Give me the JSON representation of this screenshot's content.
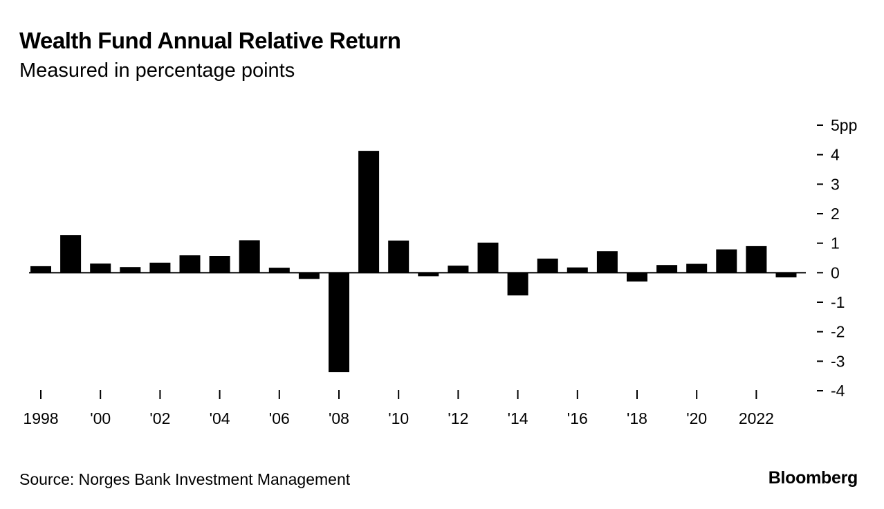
{
  "header": {
    "title": "Wealth Fund Annual Relative Return",
    "subtitle": "Measured in percentage points"
  },
  "footer": {
    "source": "Source: Norges Bank Investment Management",
    "brand": "Bloomberg"
  },
  "colors": {
    "bar": "#000000",
    "axis": "#000000",
    "background": "#ffffff"
  },
  "chart_data": {
    "type": "bar",
    "title": "Wealth Fund Annual Relative Return",
    "subtitle": "Measured in percentage points",
    "xlabel": "",
    "ylabel": "",
    "ylim": [
      -4,
      5
    ],
    "y_ticks": [
      5,
      4,
      3,
      2,
      1,
      0,
      -1,
      -2,
      -3,
      -4
    ],
    "y_tick_labels": [
      "5pp",
      "4",
      "3",
      "2",
      "1",
      "0",
      "-1",
      "-2",
      "-3",
      "-4"
    ],
    "y_axis_side": "right",
    "grid": false,
    "legend": "none",
    "categories": [
      1998,
      1999,
      2000,
      2001,
      2002,
      2003,
      2004,
      2005,
      2006,
      2007,
      2008,
      2009,
      2010,
      2011,
      2012,
      2013,
      2014,
      2015,
      2016,
      2017,
      2018,
      2019,
      2020,
      2021,
      2022,
      2023
    ],
    "values": [
      0.22,
      1.27,
      0.31,
      0.19,
      0.34,
      0.59,
      0.57,
      1.1,
      0.17,
      -0.21,
      -3.37,
      4.13,
      1.09,
      -0.12,
      0.24,
      1.02,
      -0.77,
      0.48,
      0.18,
      0.73,
      -0.3,
      0.26,
      0.3,
      0.79,
      0.9,
      -0.16
    ],
    "x_ticks": [
      1998,
      2000,
      2002,
      2004,
      2006,
      2008,
      2010,
      2012,
      2014,
      2016,
      2018,
      2020,
      2022
    ],
    "x_tick_labels": [
      "1998",
      "'00",
      "'02",
      "'04",
      "'06",
      "'08",
      "'10",
      "'12",
      "'14",
      "'16",
      "'18",
      "'20",
      "2022"
    ]
  }
}
